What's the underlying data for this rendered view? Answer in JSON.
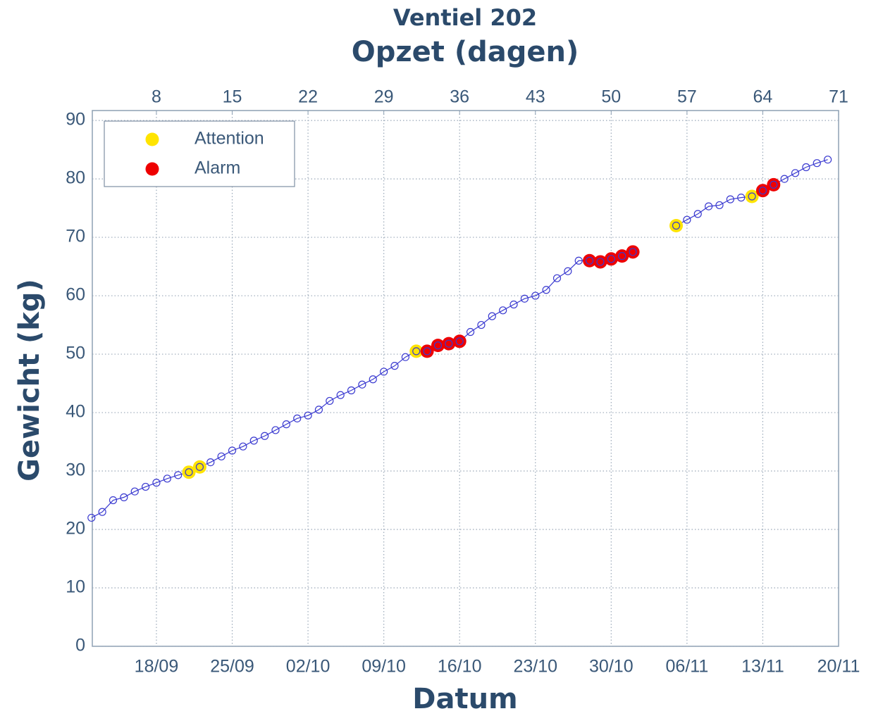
{
  "chart_data": {
    "type": "line",
    "title": "Ventiel 202",
    "x2_label": "Opzet (dagen)",
    "x_label": "Datum",
    "y_label": "Gewicht (kg)",
    "x": [
      2,
      3,
      4,
      5,
      6,
      7,
      8,
      9,
      10,
      11,
      12,
      13,
      14,
      15,
      16,
      17,
      18,
      19,
      20,
      21,
      22,
      23,
      24,
      25,
      26,
      27,
      28,
      29,
      30,
      31,
      32,
      33,
      34,
      35,
      36,
      37,
      38,
      39,
      40,
      41,
      42,
      43,
      44,
      45,
      46,
      47,
      48,
      49,
      50,
      51,
      52,
      53,
      54,
      55,
      56,
      57,
      58,
      59,
      60,
      61,
      62,
      63,
      64,
      65,
      66,
      67,
      68,
      69,
      70
    ],
    "values": [
      22,
      23,
      25,
      25.5,
      26.5,
      27.3,
      28,
      28.7,
      29.3,
      29.8,
      30.7,
      31.5,
      32.5,
      33.5,
      34.2,
      35.2,
      36,
      37,
      38,
      39,
      39.5,
      40.5,
      42,
      43,
      43.8,
      44.8,
      45.7,
      47,
      48,
      49.5,
      50.5,
      50.5,
      51.5,
      51.8,
      52.2,
      53.8,
      55,
      56.5,
      57.5,
      58.5,
      59.5,
      60,
      61,
      63,
      64.2,
      66,
      66,
      65.8,
      66.3,
      66.8,
      67.5,
      null,
      null,
      null,
      72,
      73,
      74,
      75.3,
      75.5,
      76.5,
      76.8,
      77,
      78,
      79,
      80,
      81,
      82,
      82.7,
      83.3
    ],
    "color": "#3a3ad0",
    "series": [
      {
        "name": "Attention",
        "color": "#ffe400",
        "values": [
          null,
          null,
          null,
          null,
          null,
          null,
          null,
          null,
          null,
          29.8,
          30.7,
          null,
          null,
          null,
          null,
          null,
          null,
          null,
          null,
          null,
          null,
          null,
          null,
          null,
          null,
          null,
          null,
          null,
          null,
          null,
          50.5,
          null,
          null,
          null,
          null,
          null,
          null,
          null,
          null,
          null,
          null,
          null,
          null,
          null,
          null,
          null,
          null,
          null,
          null,
          null,
          null,
          null,
          null,
          null,
          72,
          null,
          null,
          null,
          null,
          null,
          null,
          77,
          null,
          null,
          null,
          null,
          null,
          null,
          null
        ]
      },
      {
        "name": "Alarm",
        "color": "#ee0000",
        "values": [
          null,
          null,
          null,
          null,
          null,
          null,
          null,
          null,
          null,
          null,
          null,
          null,
          null,
          null,
          null,
          null,
          null,
          null,
          null,
          null,
          null,
          null,
          null,
          null,
          null,
          null,
          null,
          null,
          null,
          null,
          null,
          50.5,
          51.5,
          51.8,
          52.2,
          null,
          null,
          null,
          null,
          null,
          null,
          null,
          null,
          null,
          null,
          null,
          66,
          65.8,
          66.3,
          66.8,
          67.5,
          null,
          null,
          null,
          null,
          null,
          null,
          null,
          null,
          null,
          null,
          null,
          78,
          79,
          null,
          null,
          null,
          null,
          null
        ]
      }
    ],
    "xlim": [
      2.08,
      71
    ],
    "xticks": [
      {
        "value": 8,
        "label": "18/09"
      },
      {
        "value": 15,
        "label": "25/09"
      },
      {
        "value": 22,
        "label": "02/10"
      },
      {
        "value": 29,
        "label": "09/10"
      },
      {
        "value": 36,
        "label": "16/10"
      },
      {
        "value": 43,
        "label": "23/10"
      },
      {
        "value": 50,
        "label": "30/10"
      },
      {
        "value": 57,
        "label": "06/11"
      },
      {
        "value": 64,
        "label": "13/11"
      },
      {
        "value": 71,
        "label": "20/11"
      }
    ],
    "x2ticks": [
      8,
      15,
      22,
      29,
      36,
      43,
      50,
      57,
      64,
      71
    ],
    "ylim": [
      0,
      91.7
    ],
    "yticks": [
      0,
      10,
      20,
      30,
      40,
      50,
      60,
      70,
      80,
      90
    ],
    "grid": true,
    "legend": "upper left"
  }
}
